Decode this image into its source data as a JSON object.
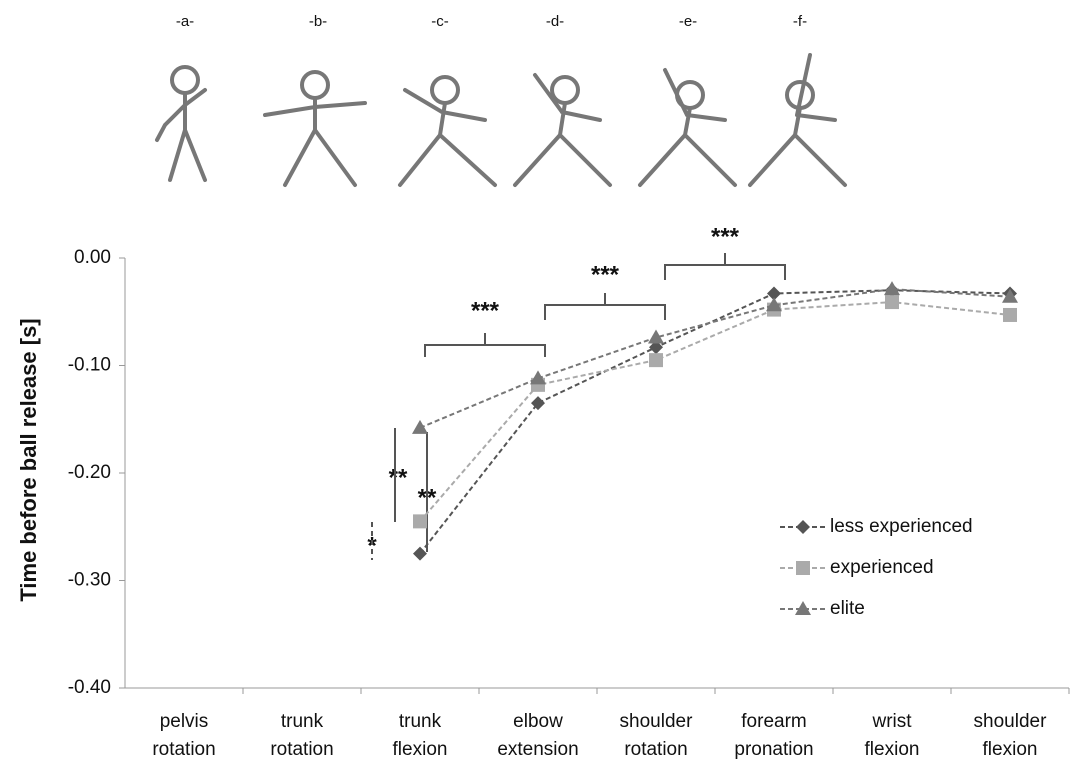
{
  "chart_data": {
    "type": "line",
    "y_label": "Time before ball release [s]",
    "panels": [
      "-a-",
      "-b-",
      "-c-",
      "-d-",
      "-e-",
      "-f-"
    ],
    "categories": [
      [
        "pelvis",
        "rotation"
      ],
      [
        "trunk",
        "rotation"
      ],
      [
        "trunk",
        "flexion"
      ],
      [
        "elbow",
        "extension"
      ],
      [
        "shoulder",
        "rotation"
      ],
      [
        "forearm",
        "pronation"
      ],
      [
        "wrist",
        "flexion"
      ],
      [
        "shoulder",
        "flexion"
      ]
    ],
    "series": [
      {
        "name": "less experienced",
        "color": "#555555",
        "marker": "diamond",
        "values": [
          null,
          null,
          -0.275,
          -0.135,
          -0.083,
          -0.033,
          -0.03,
          -0.033
        ]
      },
      {
        "name": "experienced",
        "color": "#aaaaaa",
        "marker": "square",
        "values": [
          null,
          null,
          -0.245,
          -0.118,
          -0.095,
          -0.048,
          -0.041,
          -0.053
        ]
      },
      {
        "name": "elite",
        "color": "#777777",
        "marker": "triangle",
        "values": [
          null,
          null,
          -0.158,
          -0.112,
          -0.074,
          -0.044,
          -0.029,
          -0.036
        ]
      }
    ],
    "ylim": [
      -0.4,
      0
    ],
    "yticks": [
      {
        "value": 0,
        "label": "0.00"
      },
      {
        "value": -0.1,
        "label": "-0.10"
      },
      {
        "value": -0.2,
        "label": "-0.20"
      },
      {
        "value": -0.3,
        "label": "-0.30"
      },
      {
        "value": -0.4,
        "label": "-0.40"
      }
    ],
    "annotations": [
      "***",
      "***",
      "***",
      "**",
      "**",
      "*"
    ]
  }
}
